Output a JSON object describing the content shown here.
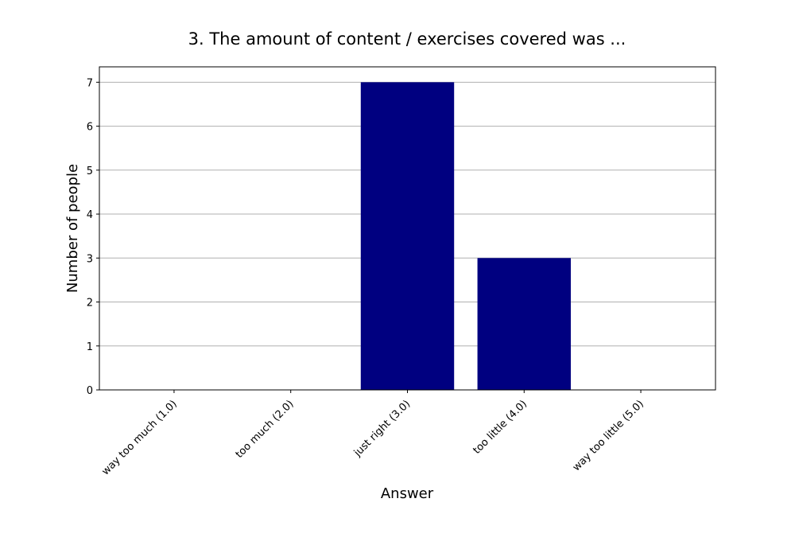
{
  "chart_data": {
    "type": "bar",
    "title": "3. The amount of content / exercises covered was ...",
    "x_label": "Answer",
    "y_label": "Number of people",
    "categories": [
      "way too much (1.0)",
      "too much (2.0)",
      "just right (3.0)",
      "too little (4.0)",
      "way too little (5.0)"
    ],
    "values": [
      0,
      0,
      7,
      3,
      0
    ],
    "color": "#000080",
    "ylim": [
      0,
      7.35
    ],
    "yticks": [
      0,
      1,
      2,
      3,
      4,
      5,
      6,
      7
    ],
    "grid": true
  }
}
